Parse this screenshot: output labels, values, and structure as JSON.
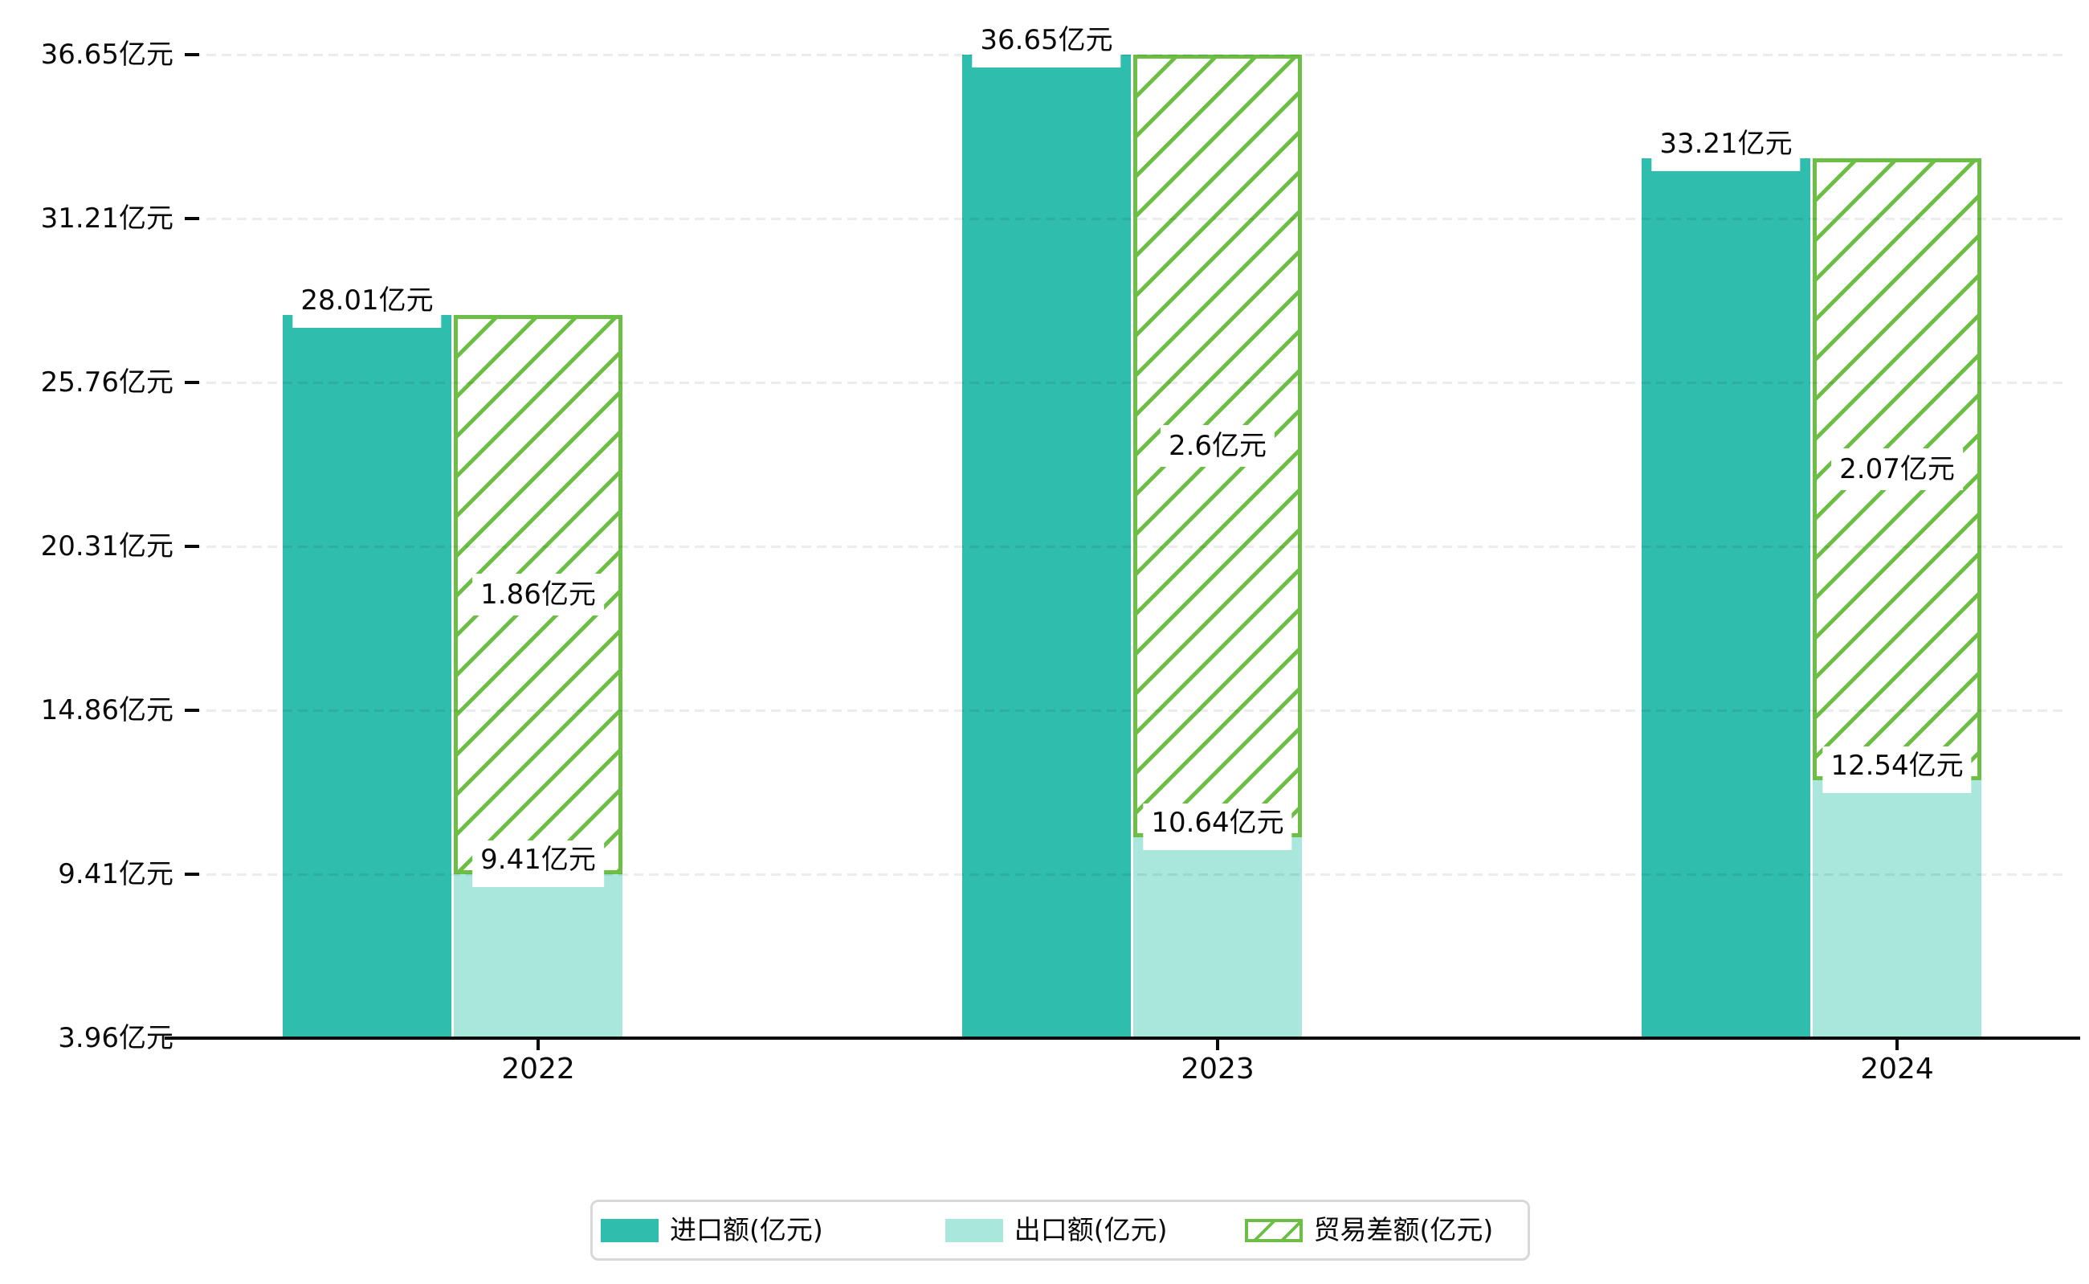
{
  "chart_data": {
    "type": "bar",
    "categories": [
      "2022",
      "2023",
      "2024"
    ],
    "series": [
      {
        "name": "进口额(亿元)",
        "key": "import",
        "style": "solid",
        "color": "#2fbdae",
        "values": [
          28.01,
          36.65,
          33.21
        ],
        "labels": [
          "28.01亿元",
          "36.65亿元",
          "33.21亿元"
        ]
      },
      {
        "name": "出口额(亿元)",
        "key": "export",
        "style": "solid",
        "color": "#a9e7dc",
        "values": [
          9.41,
          10.64,
          12.54
        ],
        "labels": [
          "9.41亿元",
          "10.64亿元",
          "12.54亿元"
        ]
      },
      {
        "name": "贸易差额(亿元)",
        "key": "trade-balance",
        "style": "hatched",
        "color": "#6cbe45",
        "values": [
          1.86,
          2.6,
          2.07
        ],
        "labels": [
          "1.86亿元",
          "2.6亿元",
          "2.07亿元"
        ],
        "bar_note": "hatched bar drawn spanning from export-bar top up to import-bar top"
      }
    ],
    "y_ticks": [
      {
        "label": "36.65亿元",
        "value": 36.65
      },
      {
        "label": "31.21亿元",
        "value": 31.21
      },
      {
        "label": "25.76亿元",
        "value": 25.76
      },
      {
        "label": "20.31亿元",
        "value": 20.31
      },
      {
        "label": "14.86亿元",
        "value": 14.86
      },
      {
        "label": "9.41亿元",
        "value": 9.41
      },
      {
        "label": "3.96亿元",
        "value": 3.96
      }
    ],
    "ylim": [
      3.96,
      36.65
    ],
    "unit": "亿元",
    "grid": "horizontal dashed",
    "legend_position": "bottom-center"
  },
  "legend": {
    "items": [
      {
        "label": "进口额(亿元)",
        "swatch": "solid-teal"
      },
      {
        "label": "出口额(亿元)",
        "swatch": "solid-light-teal"
      },
      {
        "label": "贸易差额(亿元)",
        "swatch": "green-hatched"
      }
    ]
  }
}
